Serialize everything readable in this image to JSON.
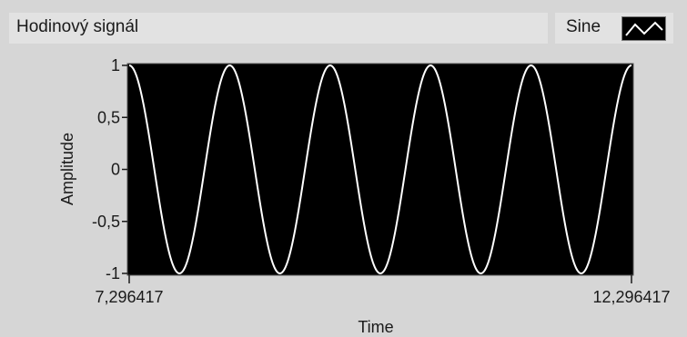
{
  "chart_data": {
    "type": "line",
    "title": "Hodinový signál",
    "xlabel": "Time",
    "ylabel": "Amplitude",
    "xlim": [
      7.296417,
      12.296417
    ],
    "ylim": [
      -1,
      1
    ],
    "x_tick_labels": [
      "7,296417",
      "12,296417"
    ],
    "y_tick_labels": [
      "1",
      "0,5",
      "0",
      "-0,5",
      "-1"
    ],
    "y_ticks": [
      1,
      0.5,
      0,
      -0.5,
      -1
    ],
    "grid": false,
    "legend_position": "top-right",
    "series": [
      {
        "name": "Sine",
        "color": "#ffffff",
        "function": "cos",
        "amplitude": 1,
        "cycles": 5,
        "phase": 0
      }
    ],
    "plot_background": "#000000"
  }
}
